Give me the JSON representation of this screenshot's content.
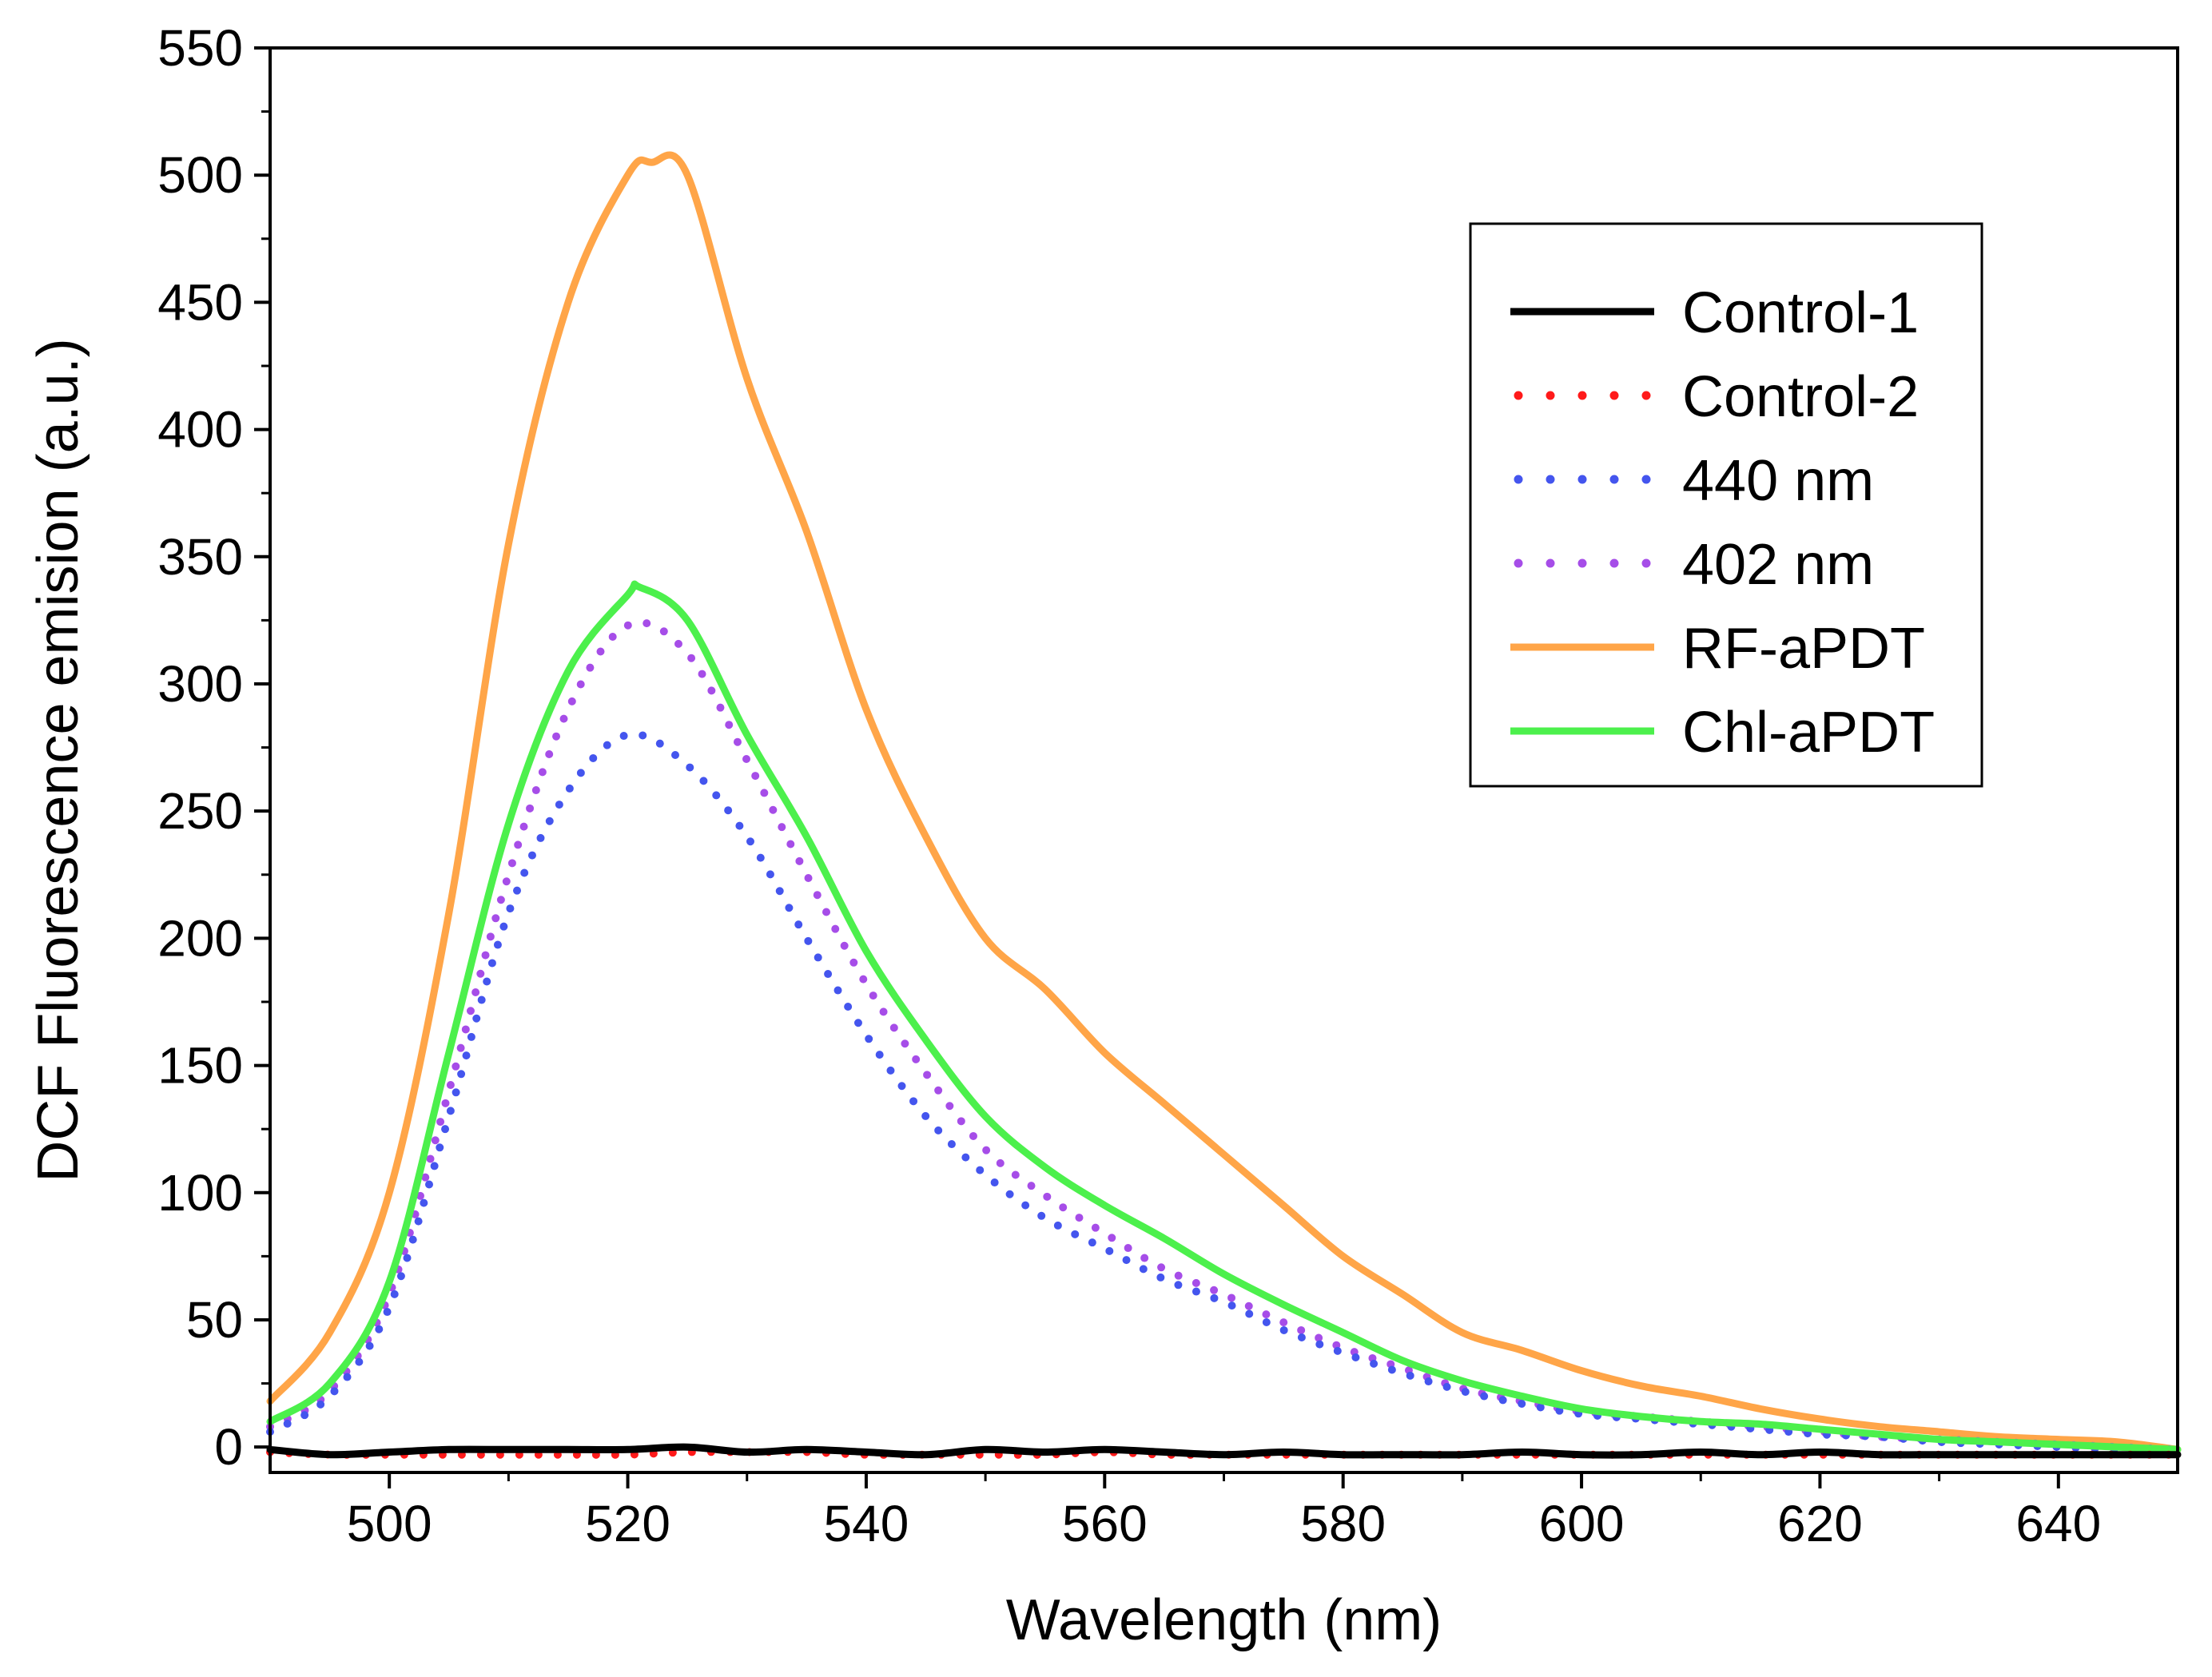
{
  "chart_data": {
    "type": "line",
    "title": "",
    "xlabel": "Wavelength (nm)",
    "ylabel": "DCF Fluorescence emision (a.u.)",
    "xlim": [
      490,
      650
    ],
    "ylim": [
      -10,
      550
    ],
    "xticks": [
      500,
      520,
      540,
      560,
      580,
      600,
      620,
      640
    ],
    "yticks": [
      0,
      50,
      100,
      150,
      200,
      250,
      300,
      350,
      400,
      450,
      500,
      550
    ],
    "grid": false,
    "legend_position": "top-right",
    "series": [
      {
        "name": "Control-1",
        "color": "#000000",
        "dash": "solid",
        "x": [
          490,
          495,
          500,
          505,
          510,
          515,
          520,
          525,
          530,
          535,
          540,
          545,
          550,
          555,
          560,
          565,
          570,
          575,
          580,
          585,
          590,
          595,
          600,
          605,
          610,
          615,
          620,
          625,
          630,
          635,
          640,
          645,
          650
        ],
        "y": [
          -1,
          -3,
          -2,
          -1,
          -1,
          -1,
          -1,
          0,
          -2,
          -1,
          -2,
          -3,
          -1,
          -2,
          -1,
          -2,
          -3,
          -2,
          -3,
          -3,
          -3,
          -2,
          -3,
          -3,
          -2,
          -3,
          -2,
          -3,
          -3,
          -3,
          -3,
          -3,
          -3
        ]
      },
      {
        "name": "Control-2",
        "color": "#ff1a1a",
        "dash": "dotted",
        "x": [
          490,
          495,
          500,
          505,
          510,
          515,
          520,
          525,
          530,
          535,
          540,
          545,
          550,
          555,
          560,
          565,
          570,
          575,
          580,
          585,
          590,
          595,
          600,
          605,
          610,
          615,
          620,
          625,
          630,
          635,
          640,
          645,
          650
        ],
        "y": [
          -2,
          -3,
          -3,
          -3,
          -3,
          -3,
          -3,
          -2,
          -2,
          -2,
          -3,
          -3,
          -3,
          -3,
          -2,
          -3,
          -3,
          -3,
          -3,
          -3,
          -3,
          -3,
          -3,
          -3,
          -3,
          -3,
          -3,
          -3,
          -3,
          -3,
          -3,
          -3,
          -3
        ]
      },
      {
        "name": "440 nm",
        "color": "#4455ee",
        "dash": "dotted",
        "x": [
          490,
          495,
          500,
          505,
          510,
          515,
          520,
          525,
          530,
          535,
          540,
          545,
          550,
          555,
          560,
          565,
          570,
          575,
          580,
          585,
          590,
          595,
          600,
          605,
          610,
          615,
          620,
          625,
          630,
          635,
          640,
          645,
          650
        ],
        "y": [
          6,
          20,
          55,
          130,
          210,
          258,
          280,
          268,
          240,
          200,
          162,
          130,
          107,
          90,
          78,
          66,
          57,
          46,
          37,
          29,
          22,
          17,
          13,
          11,
          9,
          7,
          5,
          4,
          2,
          1,
          0,
          -1,
          -2
        ]
      },
      {
        "name": "402 nm",
        "color": "#a64de8",
        "dash": "dotted",
        "x": [
          490,
          495,
          500,
          505,
          510,
          515,
          520,
          525,
          530,
          535,
          540,
          545,
          550,
          555,
          560,
          565,
          570,
          575,
          580,
          585,
          590,
          595,
          600,
          605,
          610,
          615,
          620,
          625,
          630,
          635,
          640,
          645,
          650
        ],
        "y": [
          8,
          22,
          60,
          140,
          225,
          290,
          323,
          312,
          270,
          225,
          182,
          147,
          117,
          99,
          84,
          70,
          60,
          49,
          39,
          31,
          23,
          18,
          14,
          12,
          10,
          8,
          6,
          4,
          3,
          2,
          1,
          0,
          -1
        ]
      },
      {
        "name": "RF-aPDT",
        "color": "#ffa548",
        "dash": "solid",
        "x": [
          490,
          495,
          500,
          505,
          510,
          515,
          520,
          522,
          525,
          530,
          535,
          540,
          545,
          550,
          555,
          560,
          565,
          570,
          575,
          580,
          585,
          590,
          595,
          600,
          605,
          610,
          615,
          620,
          625,
          630,
          635,
          640,
          645,
          650
        ],
        "y": [
          18,
          45,
          100,
          210,
          355,
          450,
          500,
          505,
          500,
          420,
          360,
          290,
          240,
          200,
          180,
          155,
          135,
          115,
          95,
          75,
          60,
          45,
          38,
          30,
          24,
          20,
          15,
          11,
          8,
          6,
          4,
          3,
          2,
          -1
        ]
      },
      {
        "name": "Chl-aPDT",
        "color": "#4cf04c",
        "dash": "solid",
        "x": [
          490,
          495,
          500,
          505,
          510,
          515,
          520,
          521,
          525,
          530,
          535,
          540,
          545,
          550,
          555,
          560,
          565,
          570,
          575,
          580,
          585,
          590,
          595,
          600,
          605,
          610,
          615,
          620,
          625,
          630,
          635,
          640,
          645,
          650
        ],
        "y": [
          10,
          25,
          65,
          155,
          245,
          305,
          335,
          338,
          325,
          280,
          240,
          195,
          160,
          130,
          110,
          95,
          82,
          68,
          56,
          45,
          34,
          26,
          20,
          15,
          12,
          10,
          9,
          7,
          5,
          3,
          2,
          1,
          0,
          -1
        ]
      }
    ]
  }
}
